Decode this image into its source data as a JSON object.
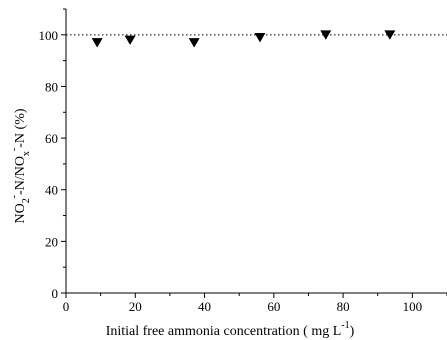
{
  "chart_data": {
    "type": "scatter",
    "marker": "down-triangle",
    "marker_color": "#000000",
    "reference_line": {
      "y": 100,
      "style": "dotted"
    },
    "x": [
      9,
      18.5,
      37,
      56,
      75,
      93.5
    ],
    "y": [
      97,
      98,
      97,
      99,
      100,
      100
    ],
    "xlim": [
      0,
      110
    ],
    "ylim": [
      0,
      110
    ],
    "xticks": [
      "0",
      "20",
      "40",
      "60",
      "80",
      "100"
    ],
    "yticks": [
      "0",
      "20",
      "40",
      "60",
      "80",
      "100"
    ],
    "xlabel": {
      "prefix": "Initial free ammonia concentration ( mg L",
      "sup": "-1",
      "suffix": ")"
    },
    "ylabel": {
      "t1": "NO",
      "sub1": "2",
      "sup1": "-",
      "t2": "-N/NO",
      "sub2": "x",
      "sup2": "-",
      "t3": "-N (%)"
    },
    "grid": false
  }
}
